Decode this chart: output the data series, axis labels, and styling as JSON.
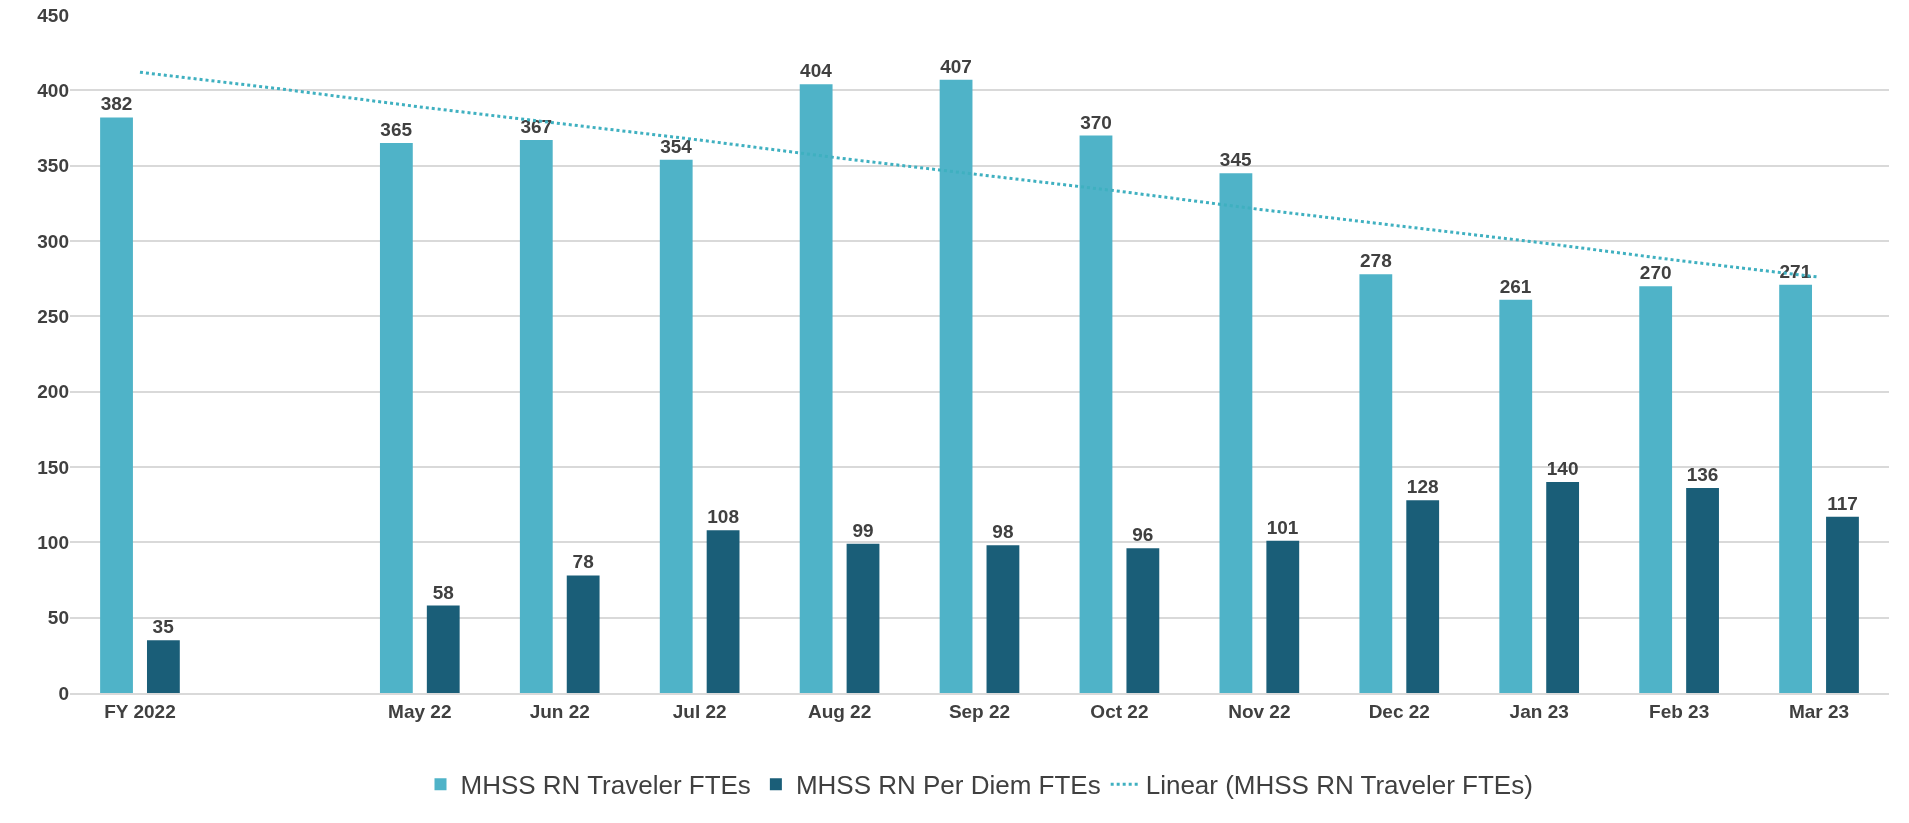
{
  "chart_data": {
    "type": "bar",
    "categories": [
      "FY 2022",
      null,
      "May 22",
      "Jun 22",
      "Jul 22",
      "Aug 22",
      "Sep 22",
      "Oct 22",
      "Nov 22",
      "Dec 22",
      "Jan 23",
      "Feb 23",
      "Mar 23"
    ],
    "series": [
      {
        "name": "MHSS RN Traveler FTEs",
        "color": "#4fb3c8",
        "values": [
          382,
          null,
          365,
          367,
          354,
          404,
          407,
          370,
          345,
          278,
          261,
          270,
          271
        ],
        "value_labels": [
          "382",
          null,
          "365",
          "367",
          "354",
          "404",
          "407",
          "370",
          "345",
          "278",
          "261",
          "270",
          "271"
        ]
      },
      {
        "name": "MHSS RN Per Diem FTEs",
        "color": "#1a5e78",
        "values": [
          35,
          null,
          58,
          78,
          108,
          99,
          98,
          96,
          101,
          128,
          140,
          136,
          117
        ],
        "value_labels": [
          "35",
          null,
          "58",
          "78",
          "108",
          "99",
          "98",
          "96",
          "101",
          "128",
          "140",
          "136",
          "117"
        ]
      },
      {
        "name": "Linear (MHSS RN Traveler FTEs)",
        "type": "line",
        "color": "#3fb0c0",
        "line_style": "dotted",
        "marker": "none",
        "values": [
          412,
          401,
          389,
          378,
          367,
          355,
          344,
          333,
          321,
          310,
          299,
          287,
          276
        ]
      }
    ],
    "ylim": [
      0,
      450
    ],
    "yticks": [
      0,
      50,
      100,
      150,
      200,
      250,
      300,
      350,
      400,
      450
    ],
    "grid": "y",
    "legend": "bottom"
  }
}
